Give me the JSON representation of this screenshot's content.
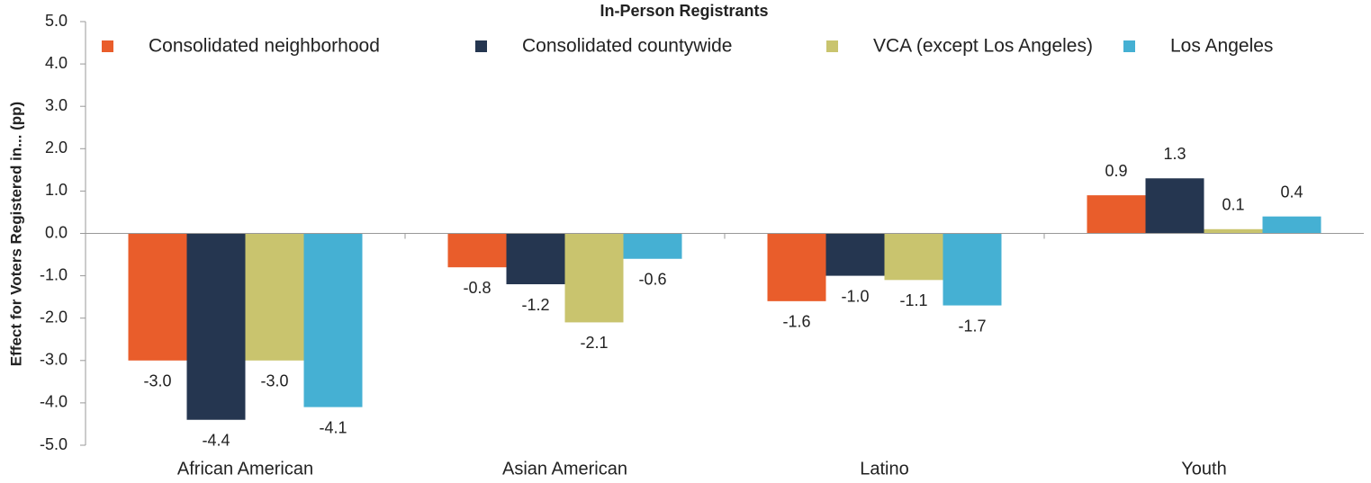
{
  "chart_data": {
    "type": "bar",
    "title": "In-Person Registrants",
    "y_label": "Effect for Voters Registered in... (pp)",
    "categories": [
      "African American",
      "Asian American",
      "Latino",
      "Youth"
    ],
    "series": [
      {
        "name": "Consolidated neighborhood",
        "color": "#e95d2b",
        "values": [
          -3.0,
          -0.8,
          -1.6,
          0.9
        ],
        "value_labels": [
          "-3.0",
          "-0.8",
          "-1.6",
          "0.9"
        ]
      },
      {
        "name": "Consolidated countywide",
        "color": "#253650",
        "values": [
          -4.4,
          -1.2,
          -1.0,
          1.3
        ],
        "value_labels": [
          "-4.4",
          "-1.2",
          "-1.0",
          "1.3"
        ]
      },
      {
        "name": "VCA (except Los Angeles)",
        "color": "#c9c46e",
        "values": [
          -3.0,
          -2.1,
          -1.1,
          0.1
        ],
        "value_labels": [
          "-3.0",
          "-2.1",
          "-1.1",
          "0.1"
        ]
      },
      {
        "name": "Los Angeles",
        "color": "#45b0d3",
        "values": [
          -4.1,
          -0.6,
          -1.7,
          0.4
        ],
        "value_labels": [
          "-4.1",
          "-0.6",
          "-1.7",
          "0.4"
        ]
      }
    ],
    "ylim": [
      -5,
      5
    ],
    "yticks": [
      {
        "value": -5,
        "label": "-5.0"
      },
      {
        "value": -4,
        "label": "-4.0"
      },
      {
        "value": -3,
        "label": "-3.0"
      },
      {
        "value": -2,
        "label": "-2.0"
      },
      {
        "value": -1,
        "label": "-1.0"
      },
      {
        "value": 0,
        "label": "0.0"
      },
      {
        "value": 1,
        "label": "1.0"
      },
      {
        "value": 2,
        "label": "2.0"
      },
      {
        "value": 3,
        "label": "3.0"
      },
      {
        "value": 4,
        "label": "4.0"
      },
      {
        "value": 5,
        "label": "5.0"
      }
    ],
    "grid": false
  }
}
